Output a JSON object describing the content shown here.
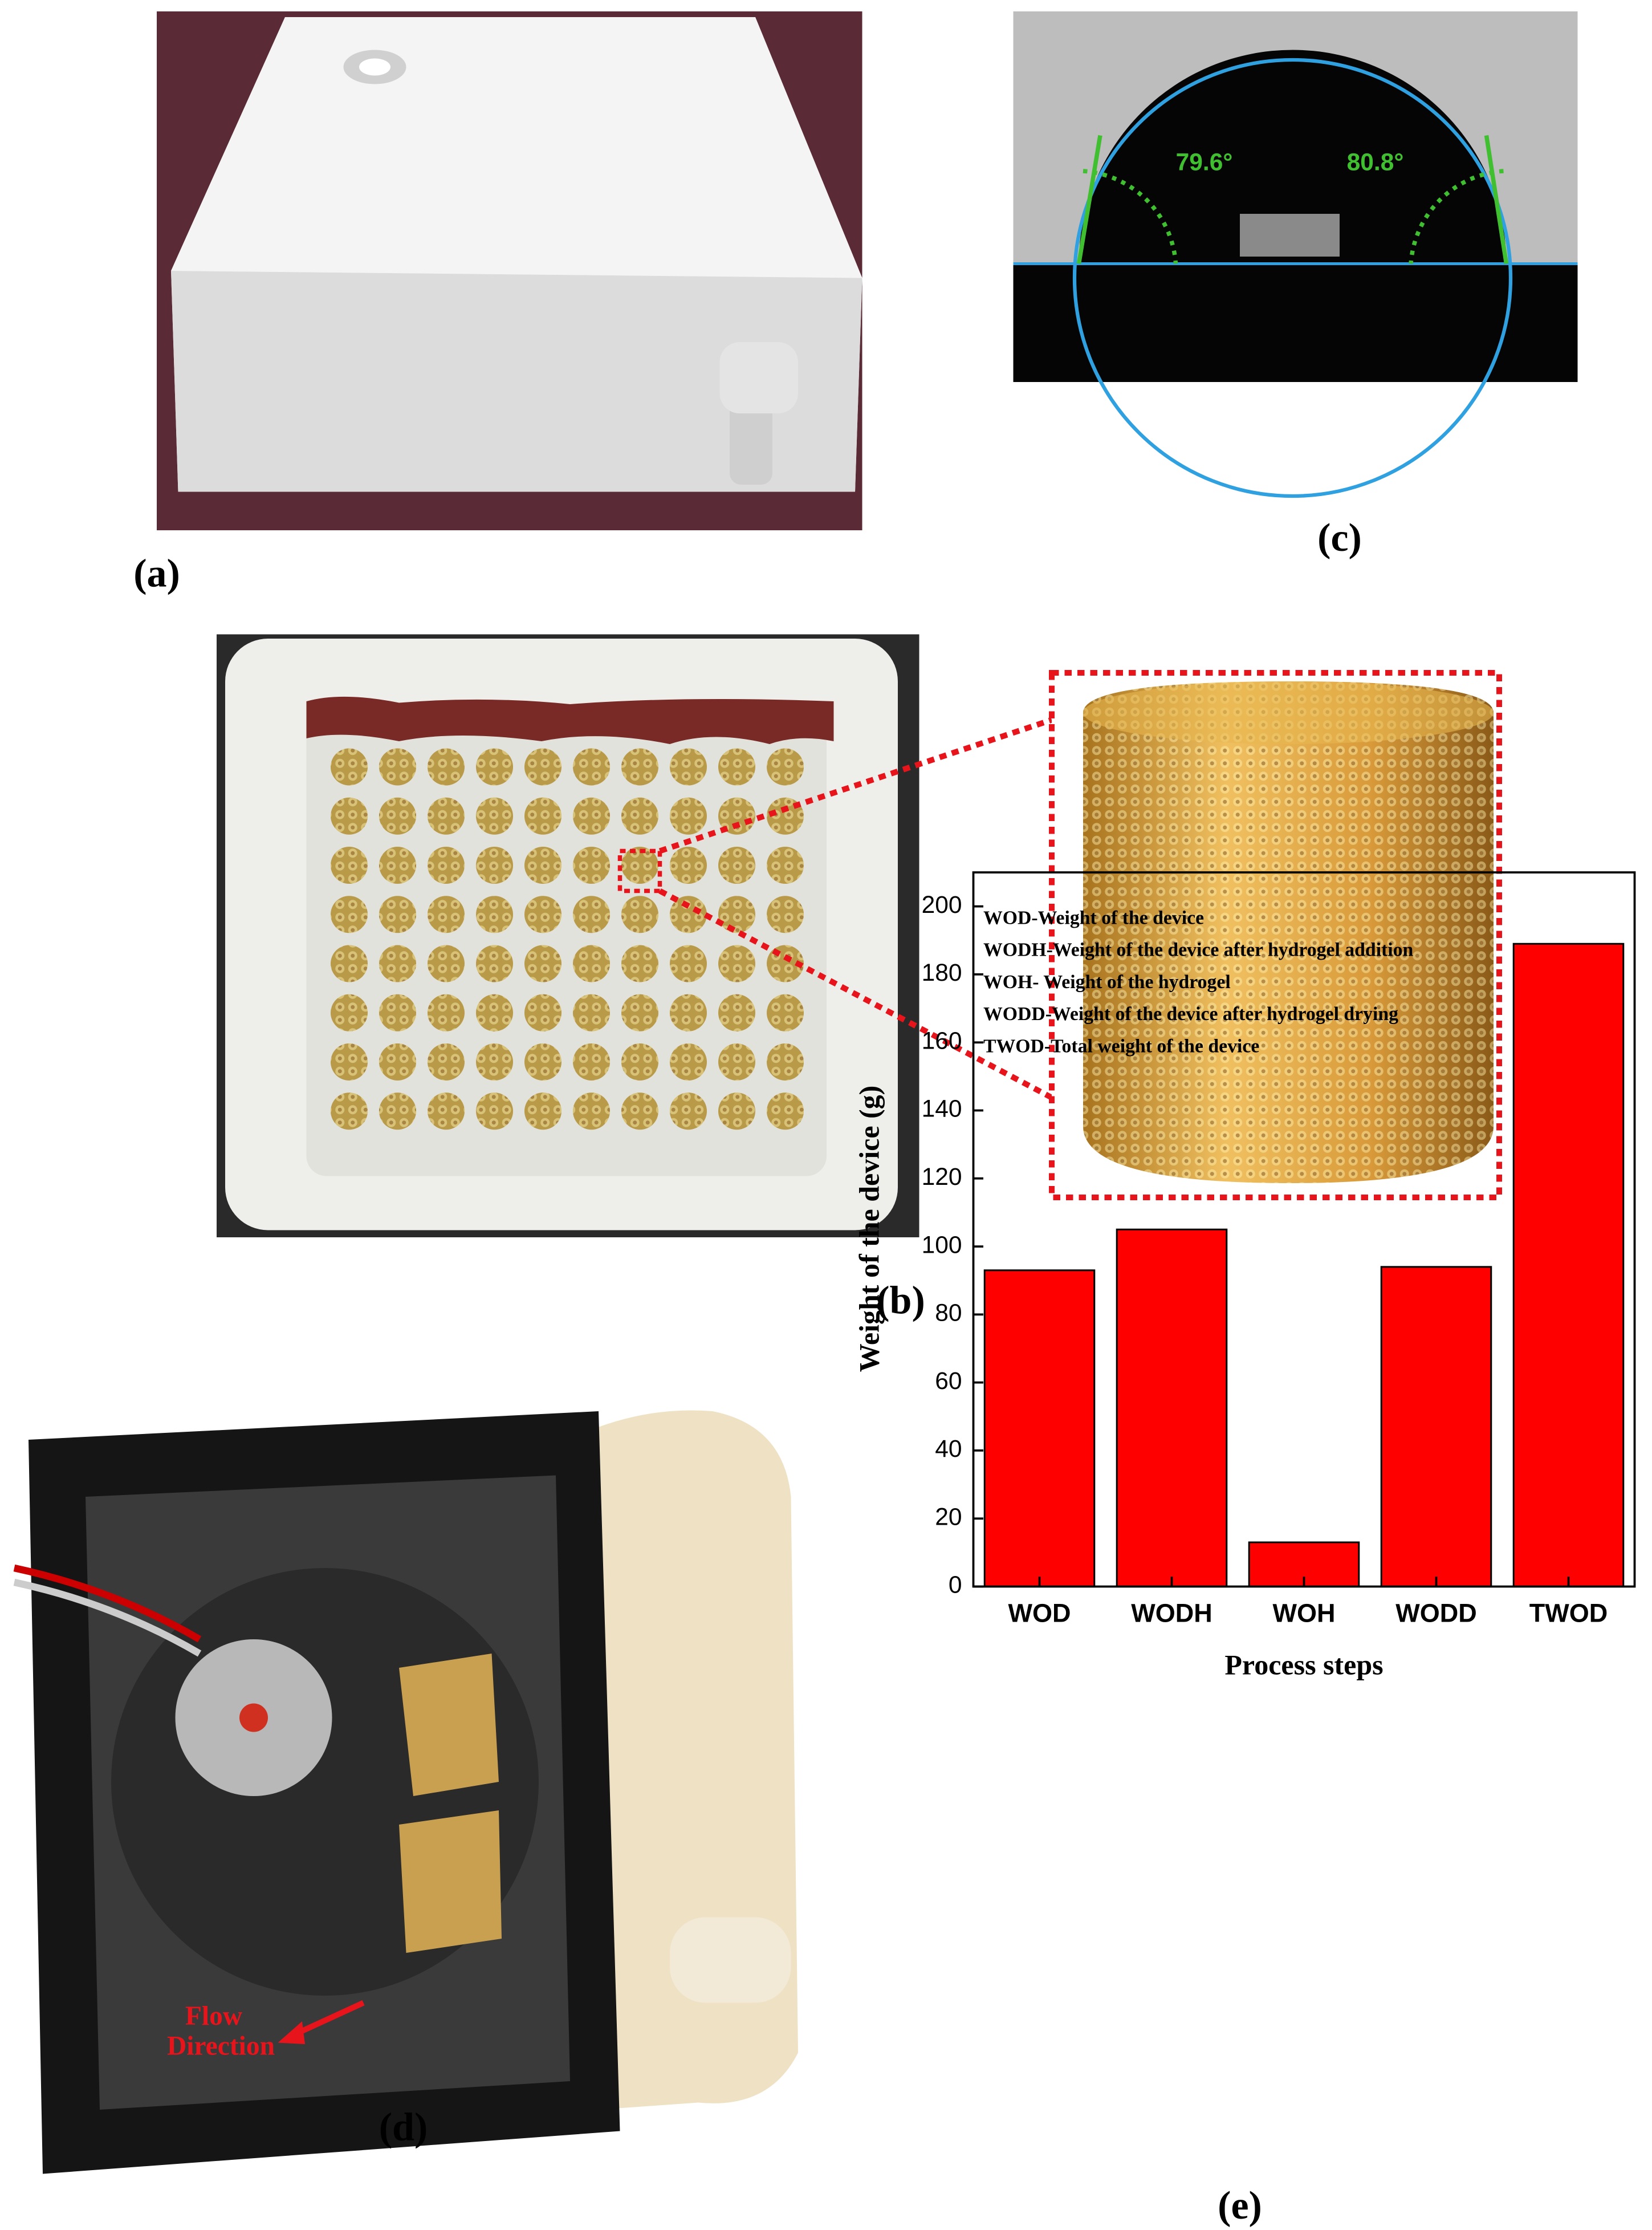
{
  "labels": {
    "a": "(a)",
    "b": "(b)",
    "c": "(c)",
    "d": "(d)",
    "e": "(e)"
  },
  "contact_angle": {
    "left": "79.6°",
    "right": "80.8°"
  },
  "fan": {
    "flow_label": [
      "Flow",
      "Direction"
    ]
  },
  "chart_data": {
    "type": "bar",
    "x_label": "Process steps",
    "y_label": "Weight of the device (g)",
    "annotations": [
      "WOD-Weight of the device",
      "WODH-Weight of the device after hydrogel addition",
      "WOH- Weight of the hydrogel",
      "WODD-Weight of the device after hydrogel drying",
      "TWOD-Total weight of the device"
    ],
    "categories": [
      "WOD",
      "WODH",
      "WOH",
      "WODD",
      "TWOD"
    ],
    "values": [
      93,
      105,
      13,
      94,
      189
    ],
    "color": "#ff0000",
    "ylim": [
      0,
      210
    ],
    "yticks": [
      0,
      20,
      40,
      60,
      80,
      100,
      120,
      140,
      160,
      180,
      200
    ],
    "grid": false
  }
}
